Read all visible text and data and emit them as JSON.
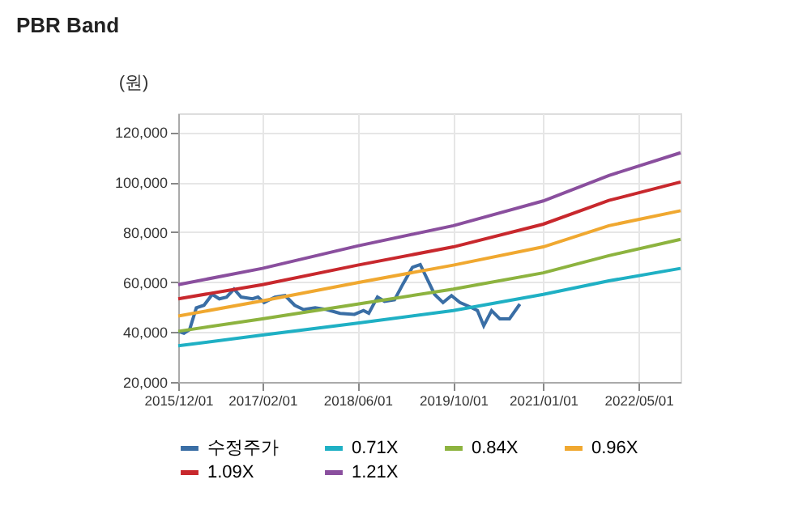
{
  "chart_data": {
    "type": "line",
    "title": "PBR Band",
    "ylabel": "(원)",
    "xlim": [
      "2015-12-01",
      "2022-12-01"
    ],
    "xticks": [
      {
        "value": "2015-12-01",
        "label": "2015/12/01"
      },
      {
        "value": "2017-02-01",
        "label": "2017/02/01"
      },
      {
        "value": "2018-06-01",
        "label": "2018/06/01"
      },
      {
        "value": "2019-10-01",
        "label": "2019/10/01"
      },
      {
        "value": "2021-01-01",
        "label": "2021/01/01"
      },
      {
        "value": "2022-05-01",
        "label": "2022/05/01"
      }
    ],
    "ylim": [
      20000,
      127600
    ],
    "yticks": [
      {
        "value": 20000,
        "label": "20,000"
      },
      {
        "value": 40000,
        "label": "40,000"
      },
      {
        "value": 60000,
        "label": "60,000"
      },
      {
        "value": 80000,
        "label": "80,000"
      },
      {
        "value": 100000,
        "label": "100,000"
      },
      {
        "value": 120000,
        "label": "120,000"
      }
    ],
    "grid": true,
    "legend": "bottom",
    "series": [
      {
        "name": "수정주가",
        "color": "#3a6ea5",
        "x": [
          "2015-12-01",
          "2015-12-30",
          "2016-01-28",
          "2016-03-02",
          "2016-04-10",
          "2016-05-22",
          "2016-06-27",
          "2016-08-03",
          "2016-09-10",
          "2016-10-16",
          "2016-12-13",
          "2017-01-10",
          "2017-02-10",
          "2017-04-06",
          "2017-05-28",
          "2017-07-16",
          "2017-08-30",
          "2017-10-28",
          "2017-12-25",
          "2018-03-04",
          "2018-05-16",
          "2018-07-01",
          "2018-07-28",
          "2018-09-10",
          "2018-10-16",
          "2018-12-06",
          "2019-01-19",
          "2019-03-07",
          "2019-04-16",
          "2019-05-13",
          "2019-06-28",
          "2019-08-10",
          "2019-09-22",
          "2019-11-04",
          "2019-12-19",
          "2020-02-01",
          "2020-03-04",
          "2020-04-13",
          "2020-05-25",
          "2020-07-13",
          "2020-09-04"
        ],
        "values": [
          40300,
          39500,
          41000,
          49700,
          50700,
          55100,
          53300,
          54000,
          57200,
          54000,
          53300,
          54000,
          51800,
          54000,
          54600,
          50700,
          49000,
          49700,
          49000,
          47500,
          47100,
          48600,
          47500,
          54000,
          52300,
          52900,
          59400,
          65900,
          67000,
          62600,
          55100,
          51800,
          54600,
          51800,
          50300,
          48600,
          42500,
          48600,
          45300,
          45300,
          51200
        ]
      },
      {
        "name": "0.71X",
        "color": "#1fb0c4",
        "x": [
          "2015-12-01",
          "2017-02-01",
          "2018-06-01",
          "2019-10-01",
          "2021-01-01",
          "2021-12-01",
          "2022-12-01"
        ],
        "values": [
          34500,
          38800,
          43600,
          48600,
          55100,
          60500,
          65500
        ]
      },
      {
        "name": "0.84X",
        "color": "#8db33f",
        "x": [
          "2015-12-01",
          "2017-02-01",
          "2018-06-01",
          "2019-10-01",
          "2021-01-01",
          "2021-12-01",
          "2022-12-01"
        ],
        "values": [
          40300,
          45300,
          51200,
          57200,
          63700,
          70600,
          77100
        ]
      },
      {
        "name": "0.96X",
        "color": "#f0a830",
        "x": [
          "2015-12-01",
          "2017-02-01",
          "2018-06-01",
          "2019-10-01",
          "2021-01-01",
          "2021-12-01",
          "2022-12-01"
        ],
        "values": [
          46400,
          52500,
          59800,
          66800,
          74100,
          82600,
          88600
        ]
      },
      {
        "name": "1.09X",
        "color": "#c8282d",
        "x": [
          "2015-12-01",
          "2017-02-01",
          "2018-06-01",
          "2019-10-01",
          "2021-01-01",
          "2021-12-01",
          "2022-12-01"
        ],
        "values": [
          53300,
          59000,
          66800,
          74100,
          83200,
          92700,
          100100
        ]
      },
      {
        "name": "1.21X",
        "color": "#8a4f9e",
        "x": [
          "2015-12-01",
          "2017-02-01",
          "2018-06-01",
          "2019-10-01",
          "2021-01-01",
          "2021-12-01",
          "2022-12-01"
        ],
        "values": [
          59000,
          65500,
          74500,
          82600,
          92500,
          102700,
          111800
        ]
      }
    ]
  }
}
